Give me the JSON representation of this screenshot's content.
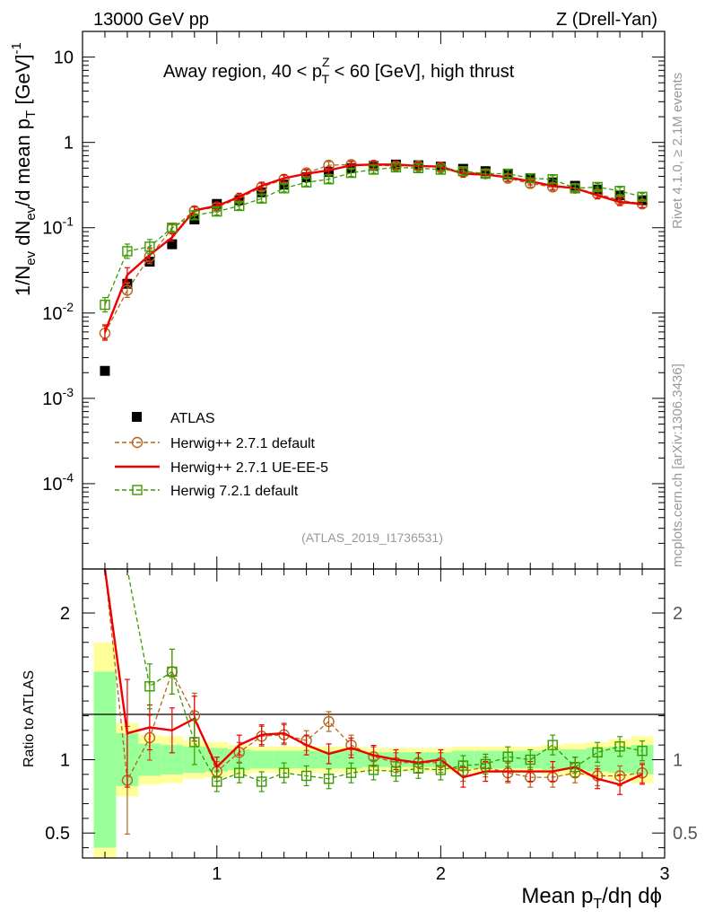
{
  "header": {
    "energy": "13000 GeV pp",
    "process": "Z (Drell-Yan)"
  },
  "side": {
    "rivet": "Rivet 4.1.0, ≥ 2.1M events",
    "site": "mcplots.cern.ch [arXiv:1306.3436]"
  },
  "chart_data": {
    "type": "line",
    "title_parts": {
      "pre": "Away region, 40 < p",
      "sup": "Z",
      "sub": "T",
      "post": " < 60 [GeV], high thrust"
    },
    "ylabel_main": {
      "p1": "1/N",
      "s1": "ev",
      "p2": " dN",
      "s2": "ev",
      "p3": "/d mean p",
      "s3": "T",
      "p4": " [GeV]",
      "sup": "-1"
    },
    "ylabel_ratio": "Ratio to ATLAS",
    "xlabel": {
      "p1": "Mean p",
      "s1": "T",
      "p2": "/dη dϕ"
    },
    "analysis_id": "(ATLAS_2019_I1736531)",
    "xlim": [
      0.4,
      3.0
    ],
    "ylim_main": [
      1e-05,
      20
    ],
    "ylim_ratio": [
      0.33,
      2.3
    ],
    "xticks": [
      1,
      2,
      3
    ],
    "xtick_labels": [
      "1",
      "2",
      "3"
    ],
    "yticks_main": [
      {
        "v": 0.001,
        "base": "10",
        "exp": "-3"
      },
      {
        "v": 0.01,
        "base": "10",
        "exp": "-2"
      },
      {
        "v": 0.1,
        "base": "10",
        "exp": "-1"
      },
      {
        "v": 1,
        "base": "1",
        "exp": ""
      },
      {
        "v": 10,
        "base": "10",
        "exp": ""
      },
      {
        "v": 0.0001,
        "base": "10",
        "exp": "-4"
      }
    ],
    "yticks_ratio": [
      {
        "v": 0.5,
        "label": "0.5"
      },
      {
        "v": 1,
        "label": "1"
      },
      {
        "v": 2,
        "label": "2"
      }
    ],
    "x": [
      0.5,
      0.6,
      0.7,
      0.8,
      0.9,
      1.0,
      1.1,
      1.2,
      1.3,
      1.4,
      1.5,
      1.6,
      1.7,
      1.8,
      1.9,
      2.0,
      2.1,
      2.2,
      2.3,
      2.4,
      2.5,
      2.6,
      2.7,
      2.8,
      2.9
    ],
    "band_yellow_frac": [
      0.8,
      0.25,
      0.17,
      0.16,
      0.13,
      0.12,
      0.1,
      0.09,
      0.09,
      0.09,
      0.09,
      0.09,
      0.08,
      0.08,
      0.08,
      0.08,
      0.09,
      0.09,
      0.09,
      0.09,
      0.1,
      0.11,
      0.12,
      0.14,
      0.16
    ],
    "band_green_frac": [
      0.6,
      0.18,
      0.11,
      0.1,
      0.09,
      0.08,
      0.07,
      0.06,
      0.06,
      0.06,
      0.06,
      0.06,
      0.05,
      0.05,
      0.05,
      0.05,
      0.06,
      0.06,
      0.06,
      0.06,
      0.07,
      0.07,
      0.08,
      0.09,
      0.1
    ],
    "series": [
      {
        "name": "ATLAS",
        "color": "#000000",
        "values": [
          0.0021,
          0.022,
          0.04,
          0.064,
          0.125,
          0.19,
          0.21,
          0.26,
          0.32,
          0.39,
          0.45,
          0.5,
          0.53,
          0.55,
          0.54,
          0.52,
          0.49,
          0.46,
          0.42,
          0.38,
          0.34,
          0.31,
          0.28,
          0.24,
          0.21
        ],
        "ratio": [
          1,
          1,
          1,
          1,
          1,
          1,
          1,
          1,
          1,
          1,
          1,
          1,
          1,
          1,
          1,
          1,
          1,
          1,
          1,
          1,
          1,
          1,
          1,
          1,
          1
        ]
      },
      {
        "name": "Herwig++ 2.7.1 default",
        "color": "#b5651d",
        "values": [
          0.0058,
          0.0185,
          0.046,
          0.098,
          0.158,
          0.175,
          0.22,
          0.3,
          0.37,
          0.44,
          0.54,
          0.55,
          0.54,
          0.53,
          0.53,
          0.51,
          0.45,
          0.43,
          0.38,
          0.33,
          0.3,
          0.29,
          0.25,
          0.21,
          0.19
        ],
        "ratio": [
          2.76,
          0.86,
          1.15,
          1.6,
          1.3,
          0.92,
          1.05,
          1.16,
          1.17,
          1.13,
          1.26,
          1.1,
          1.02,
          0.98,
          0.98,
          0.98,
          0.92,
          0.95,
          0.91,
          0.88,
          0.88,
          0.91,
          0.89,
          0.89,
          0.91
        ]
      },
      {
        "name": "Herwig++ 2.7.1 UE-EE-5",
        "color": "#ee0000",
        "values": [
          0.006,
          0.028,
          0.048,
          0.077,
          0.16,
          0.18,
          0.23,
          0.31,
          0.38,
          0.43,
          0.47,
          0.54,
          0.55,
          0.55,
          0.53,
          0.52,
          0.43,
          0.42,
          0.39,
          0.35,
          0.31,
          0.29,
          0.24,
          0.2,
          0.19
        ],
        "ratio": [
          2.85,
          1.18,
          1.22,
          1.2,
          1.28,
          0.95,
          1.1,
          1.17,
          1.18,
          1.1,
          1.04,
          1.08,
          1.03,
          1.0,
          0.98,
          1.0,
          0.88,
          0.92,
          0.92,
          0.92,
          0.92,
          0.95,
          0.87,
          0.83,
          0.9
        ]
      },
      {
        "name": "Herwig 7.2.1 default",
        "color": "#3a9a00",
        "values": [
          0.0125,
          0.053,
          0.06,
          0.1,
          0.14,
          0.155,
          0.18,
          0.22,
          0.29,
          0.34,
          0.37,
          0.44,
          0.48,
          0.51,
          0.5,
          0.48,
          0.46,
          0.43,
          0.43,
          0.38,
          0.37,
          0.29,
          0.3,
          0.27,
          0.23
        ],
        "ratio": [
          6.0,
          2.4,
          1.5,
          1.6,
          1.12,
          0.85,
          0.91,
          0.85,
          0.91,
          0.89,
          0.87,
          0.91,
          0.93,
          0.92,
          0.94,
          0.93,
          0.96,
          0.97,
          1.02,
          1.0,
          1.1,
          0.95,
          1.05,
          1.09,
          1.06
        ]
      }
    ]
  }
}
